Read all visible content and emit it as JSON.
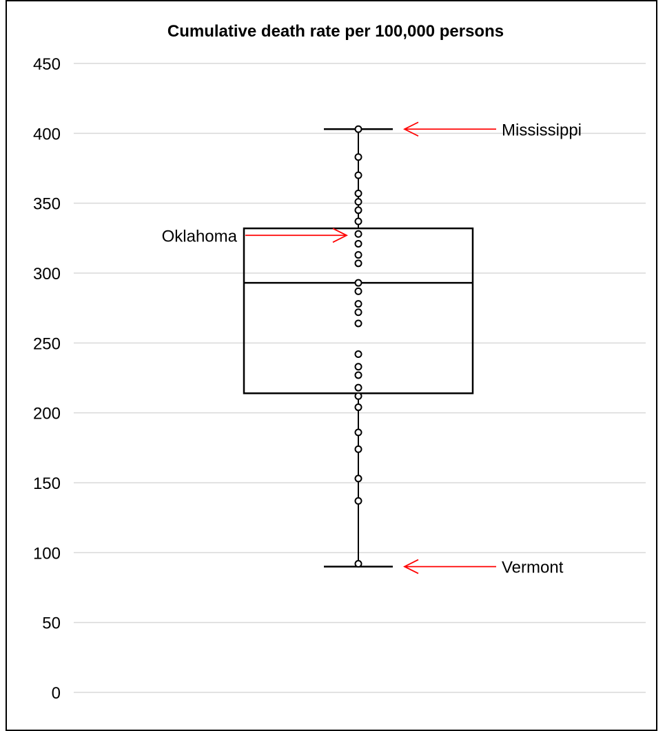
{
  "chart_data": {
    "type": "box",
    "title": "Cumulative death rate per 100,000 persons",
    "xlabel": "",
    "ylabel": "",
    "ylim": [
      0,
      450
    ],
    "yticks": [
      0,
      50,
      100,
      150,
      200,
      250,
      300,
      350,
      400,
      450
    ],
    "grid": true,
    "box": {
      "min": 90,
      "q1": 214,
      "median": 293,
      "q3": 332,
      "max": 403
    },
    "points": [
      403,
      383,
      370,
      357,
      351,
      345,
      337,
      328,
      321,
      313,
      307,
      293,
      287,
      278,
      272,
      264,
      242,
      233,
      227,
      218,
      212,
      204,
      186,
      174,
      153,
      137,
      92
    ],
    "annotations": [
      {
        "label": "Mississippi",
        "value": 403,
        "side": "right"
      },
      {
        "label": "Oklahoma",
        "value": 327,
        "side": "left"
      },
      {
        "label": "Vermont",
        "value": 90,
        "side": "right"
      }
    ],
    "colors": {
      "box": "#000000",
      "points": "#000000",
      "arrow": "#ff0000",
      "grid": "#d9d9d9"
    }
  }
}
